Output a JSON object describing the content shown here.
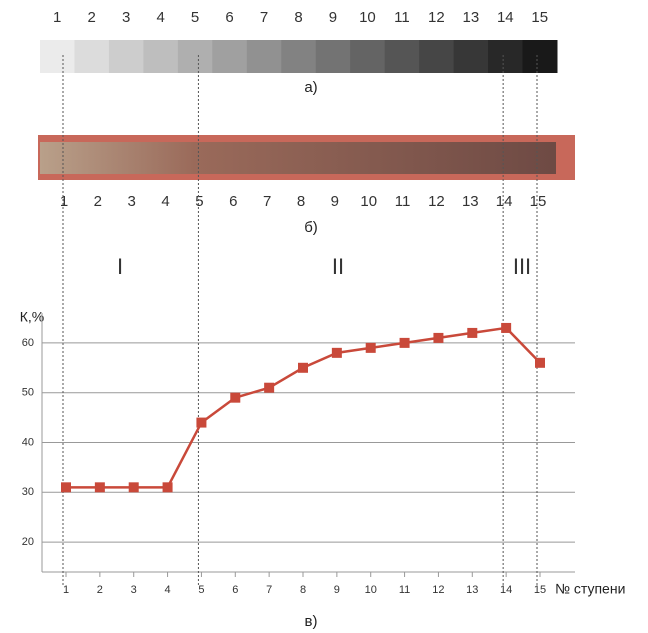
{
  "panel_labels": [
    "а)",
    "б)",
    "в)"
  ],
  "regions": [
    "I",
    "II",
    "III"
  ],
  "chart_data": {
    "type": "line",
    "x": [
      1,
      2,
      3,
      4,
      5,
      6,
      7,
      8,
      9,
      10,
      11,
      12,
      13,
      14,
      15
    ],
    "values": [
      31,
      31,
      31,
      31,
      44,
      49,
      51,
      55,
      58,
      59,
      60,
      61,
      62,
      63,
      56
    ],
    "color": "#c9493a",
    "ylabel": "К,%",
    "xlabel": "№ ступени",
    "ylim": [
      14,
      66
    ],
    "yticks": [
      20,
      30,
      40,
      50,
      60
    ],
    "grid": true
  }
}
